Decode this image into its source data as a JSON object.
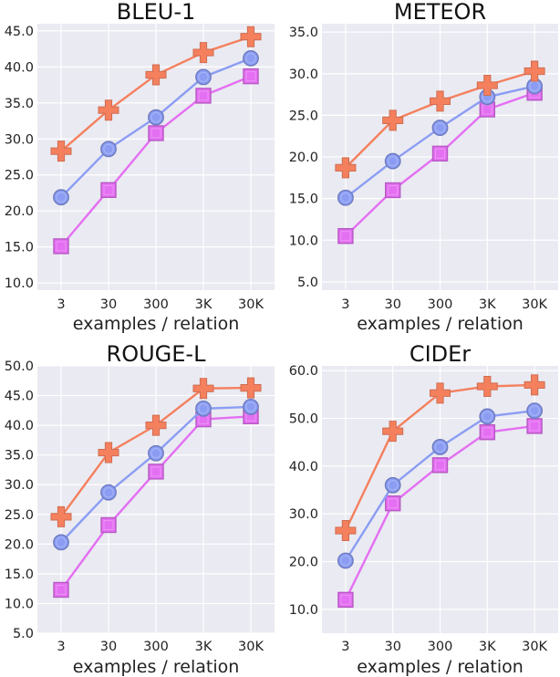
{
  "chart_data": [
    {
      "type": "line",
      "title": "BLEU-1",
      "xlabel": "examples / relation",
      "ylabel": "",
      "categories": [
        "3",
        "30",
        "300",
        "3K",
        "30K"
      ],
      "yticks": [
        "10.0",
        "15.0",
        "20.0",
        "25.0",
        "30.0",
        "35.0",
        "40.0",
        "45.0"
      ],
      "ylim": [
        9,
        46
      ],
      "grid": true,
      "series": [
        {
          "name": "cross",
          "marker": "plus",
          "color": "#f4805e",
          "values": [
            28.3,
            34.0,
            38.9,
            42.0,
            44.2
          ]
        },
        {
          "name": "circle",
          "marker": "circle",
          "color": "#8b9df3",
          "values": [
            21.9,
            28.6,
            33.0,
            38.6,
            41.2
          ]
        },
        {
          "name": "square",
          "marker": "square",
          "color": "#e46ff2",
          "values": [
            15.1,
            22.9,
            30.8,
            36.0,
            38.7
          ]
        }
      ]
    },
    {
      "type": "line",
      "title": "METEOR",
      "xlabel": "examples / relation",
      "ylabel": "",
      "categories": [
        "3",
        "30",
        "300",
        "3K",
        "30K"
      ],
      "yticks": [
        "5.0",
        "10.0",
        "15.0",
        "20.0",
        "25.0",
        "30.0",
        "35.0"
      ],
      "ylim": [
        4,
        36
      ],
      "grid": true,
      "series": [
        {
          "name": "cross",
          "marker": "plus",
          "color": "#f4805e",
          "values": [
            18.7,
            24.4,
            26.7,
            28.6,
            30.3
          ]
        },
        {
          "name": "circle",
          "marker": "circle",
          "color": "#8b9df3",
          "values": [
            15.1,
            19.5,
            23.5,
            27.2,
            28.5
          ]
        },
        {
          "name": "square",
          "marker": "square",
          "color": "#e46ff2",
          "values": [
            10.5,
            16.0,
            20.4,
            25.7,
            27.7
          ]
        }
      ]
    },
    {
      "type": "line",
      "title": "ROUGE-L",
      "xlabel": "examples / relation",
      "ylabel": "",
      "categories": [
        "3",
        "30",
        "300",
        "3K",
        "30K"
      ],
      "yticks": [
        "5.0",
        "10.0",
        "15.0",
        "20.0",
        "25.0",
        "30.0",
        "35.0",
        "40.0",
        "45.0",
        "50.0"
      ],
      "ylim": [
        5,
        50
      ],
      "grid": true,
      "series": [
        {
          "name": "cross",
          "marker": "plus",
          "color": "#f4805e",
          "values": [
            24.6,
            35.4,
            40.0,
            46.2,
            46.3
          ]
        },
        {
          "name": "circle",
          "marker": "circle",
          "color": "#8b9df3",
          "values": [
            20.3,
            28.7,
            35.3,
            42.8,
            43.1
          ]
        },
        {
          "name": "square",
          "marker": "square",
          "color": "#e46ff2",
          "values": [
            12.3,
            23.2,
            32.2,
            41.0,
            41.5
          ]
        }
      ]
    },
    {
      "type": "line",
      "title": "CIDEr",
      "xlabel": "examples / relation",
      "ylabel": "",
      "categories": [
        "3",
        "30",
        "300",
        "3K",
        "30K"
      ],
      "yticks": [
        "10.0",
        "20.0",
        "30.0",
        "40.0",
        "50.0",
        "60.0"
      ],
      "ylim": [
        5,
        61
      ],
      "grid": true,
      "series": [
        {
          "name": "cross",
          "marker": "plus",
          "color": "#f4805e",
          "values": [
            26.5,
            47.3,
            55.3,
            56.7,
            57.0
          ]
        },
        {
          "name": "circle",
          "marker": "circle",
          "color": "#8b9df3",
          "values": [
            20.2,
            36.0,
            44.0,
            50.4,
            51.6
          ]
        },
        {
          "name": "square",
          "marker": "square",
          "color": "#e46ff2",
          "values": [
            12.0,
            32.2,
            40.2,
            47.1,
            48.4
          ]
        }
      ]
    }
  ]
}
